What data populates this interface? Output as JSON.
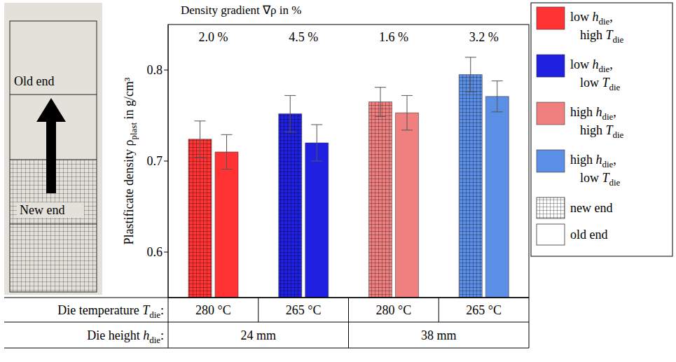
{
  "chart_data": {
    "type": "bar",
    "title": "Density gradient ∇ρ in %",
    "categories": [
      "280 °C",
      "265 °C",
      "280 °C",
      "265 °C"
    ],
    "groups": [
      "24 mm",
      "24 mm",
      "38 mm",
      "38 mm"
    ],
    "row_labels": [
      [
        {
          "t": "Die temperature "
        },
        {
          "t": "T",
          "i": true
        },
        {
          "t": "die",
          "sub": true
        },
        {
          "t": ":"
        }
      ],
      [
        {
          "t": "Die height "
        },
        {
          "t": "h",
          "i": true
        },
        {
          "t": "die",
          "sub": true
        },
        {
          "t": ":"
        }
      ]
    ],
    "ylabel": [
      {
        "t": "Plastificate density ρ"
      },
      {
        "t": "plast",
        "sub": true
      },
      {
        "t": " in g/cm³"
      }
    ],
    "ylim": [
      0.55,
      0.85
    ],
    "yticks": [
      0.6,
      0.7,
      0.8
    ],
    "density_gradient": [
      {
        "value": 2.0,
        "label": "2.0 %"
      },
      {
        "value": 4.5,
        "label": "4.5 %"
      },
      {
        "value": 1.6,
        "label": "1.6 %"
      },
      {
        "value": 3.2,
        "label": "3.2 %"
      }
    ],
    "series": [
      {
        "name": "new end",
        "colors": [
          "#ff3333",
          "#2020e0",
          "#f08080",
          "#5b8fe6"
        ],
        "values": [
          0.724,
          0.752,
          0.765,
          0.795
        ],
        "error": [
          0.02,
          0.02,
          0.016,
          0.019
        ]
      },
      {
        "name": "old end",
        "colors": [
          "#ff3333",
          "#2020e0",
          "#f08080",
          "#5b8fe6"
        ],
        "values": [
          0.71,
          0.72,
          0.753,
          0.771
        ],
        "error": [
          0.019,
          0.02,
          0.019,
          0.017
        ]
      }
    ],
    "color_legend": [
      {
        "color": "#ff3333",
        "lines": [
          [
            {
              "t": "low "
            },
            {
              "t": "h",
              "i": true
            },
            {
              "t": "die",
              "sub": true
            },
            {
              "t": ","
            }
          ],
          [
            {
              "t": "high "
            },
            {
              "t": "T",
              "i": true
            },
            {
              "t": "die",
              "sub": true
            }
          ]
        ]
      },
      {
        "color": "#2020e0",
        "lines": [
          [
            {
              "t": "low "
            },
            {
              "t": "h",
              "i": true
            },
            {
              "t": "die",
              "sub": true
            },
            {
              "t": ","
            }
          ],
          [
            {
              "t": "low "
            },
            {
              "t": "T",
              "i": true
            },
            {
              "t": "die",
              "sub": true
            }
          ]
        ]
      },
      {
        "color": "#f08080",
        "lines": [
          [
            {
              "t": "high "
            },
            {
              "t": "h",
              "i": true
            },
            {
              "t": "die",
              "sub": true
            },
            {
              "t": ","
            }
          ],
          [
            {
              "t": "high "
            },
            {
              "t": "T",
              "i": true
            },
            {
              "t": "die",
              "sub": true
            }
          ]
        ]
      },
      {
        "color": "#5b8fe6",
        "lines": [
          [
            {
              "t": "high "
            },
            {
              "t": "h",
              "i": true
            },
            {
              "t": "die",
              "sub": true
            },
            {
              "t": ","
            }
          ],
          [
            {
              "t": "low "
            },
            {
              "t": "T",
              "i": true
            },
            {
              "t": "die",
              "sub": true
            }
          ]
        ]
      }
    ],
    "legend": "right",
    "sample_labels": {
      "top": "Old end",
      "bottom": "New end"
    }
  }
}
